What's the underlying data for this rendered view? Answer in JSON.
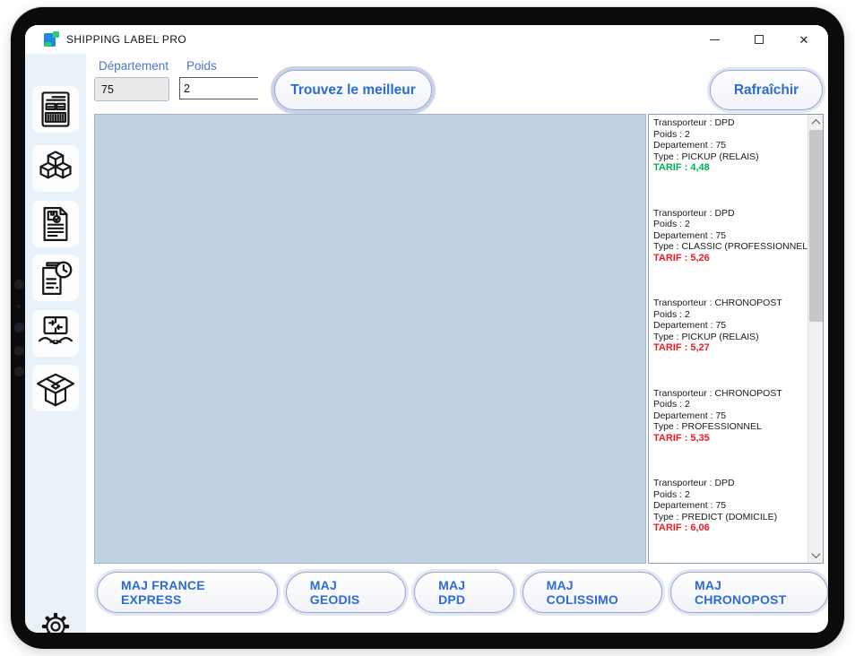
{
  "window": {
    "title": "SHIPPING LABEL PRO",
    "control_icons": [
      "minimize-icon",
      "maximize-icon",
      "close-icon"
    ]
  },
  "toolbar": {
    "departement_label": "Département",
    "departement_value": "75",
    "poids_label": "Poids",
    "poids_value": "2",
    "find_button": "Trouvez le meilleur",
    "refresh_button": "Rafraîchir"
  },
  "sidebar": {
    "icons": [
      "shipping-label-icon",
      "packages-icon",
      "delivery-note-icon",
      "history-icon",
      "handover-icon",
      "open-box-icon",
      "settings-gear-icon"
    ]
  },
  "results": {
    "labels": {
      "transporteur": "Transporteur",
      "poids": "Poids",
      "departement": "Departement",
      "type": "Type",
      "tarif": "TARIF"
    },
    "entries": [
      {
        "transporteur": "DPD",
        "poids": "2",
        "departement": "75",
        "type": "PICKUP (RELAIS)",
        "tarif": "4,48",
        "tarif_color": "green"
      },
      {
        "transporteur": "DPD",
        "poids": "2",
        "departement": "75",
        "type": "CLASSIC (PROFESSIONNEL)",
        "tarif": "5,26",
        "tarif_color": "red"
      },
      {
        "transporteur": "CHRONOPOST",
        "poids": "2",
        "departement": "75",
        "type": "PICKUP (RELAIS)",
        "tarif": "5,27",
        "tarif_color": "red"
      },
      {
        "transporteur": "CHRONOPOST",
        "poids": "2",
        "departement": "75",
        "type": "PROFESSIONNEL",
        "tarif": "5,35",
        "tarif_color": "red"
      },
      {
        "transporteur": "DPD",
        "poids": "2",
        "departement": "75",
        "type": "PREDICT (DOMICILE)",
        "tarif": "6,06",
        "tarif_color": "red"
      }
    ]
  },
  "footer": {
    "buttons": [
      "MAJ FRANCE EXPRESS",
      "MAJ GEODIS",
      "MAJ DPD",
      "MAJ COLISSIMO",
      "MAJ CHRONOPOST"
    ]
  },
  "colors": {
    "accent_blue": "#2d6bd0",
    "tarif_green": "#00b050",
    "tarif_red": "#ed1c24",
    "panel_blue": "#c2d1e4"
  }
}
